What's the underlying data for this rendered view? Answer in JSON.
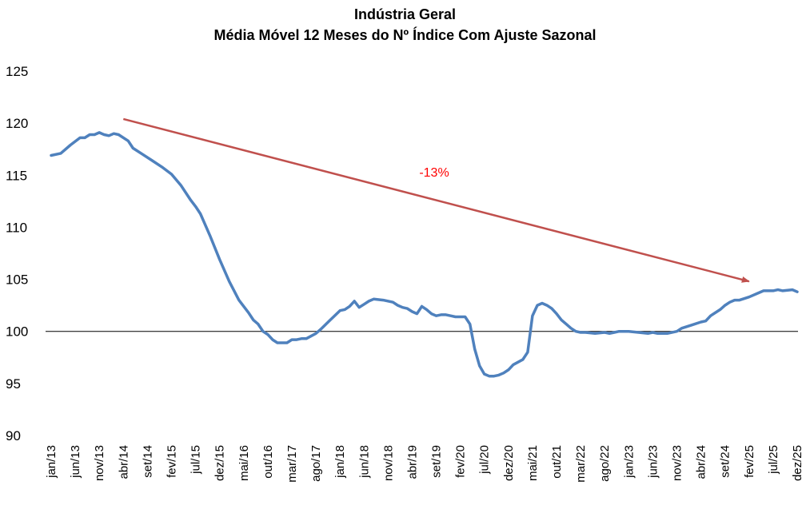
{
  "chart_data": {
    "type": "line",
    "title": "Indústria Geral",
    "subtitle": "Média Móvel 12 Meses do Nº Índice Com Ajuste Sazonal",
    "xlabel": "",
    "ylabel": "",
    "ylim": [
      90,
      125
    ],
    "yticks": [
      90,
      95,
      100,
      105,
      110,
      115,
      120,
      125
    ],
    "reference_line": 100,
    "x_tick_labels": [
      "jan/13",
      "jun/13",
      "nov/13",
      "abr/14",
      "set/14",
      "fev/15",
      "jul/15",
      "dez/15",
      "mai/16",
      "out/16",
      "mar/17",
      "ago/17",
      "jan/18",
      "jun/18",
      "nov/18",
      "abr/19",
      "set/19",
      "fev/20",
      "jul/20",
      "dez/20",
      "mai/21",
      "out/21",
      "mar/22",
      "ago/22",
      "jan/23",
      "jun/23",
      "nov/23",
      "abr/24",
      "set/24",
      "fev/25",
      "jul/25",
      "dez/25"
    ],
    "series_keypoints": [
      {
        "name": "Indústria Geral",
        "color": "#4F81BD",
        "points": [
          {
            "month": "jan/13",
            "value": 116.9
          },
          {
            "month": "mar/13",
            "value": 117.1
          },
          {
            "month": "mai/13",
            "value": 117.9
          },
          {
            "month": "jul/13",
            "value": 118.6
          },
          {
            "month": "ago/13",
            "value": 118.6
          },
          {
            "month": "set/13",
            "value": 118.9
          },
          {
            "month": "out/13",
            "value": 118.9
          },
          {
            "month": "nov/13",
            "value": 119.1
          },
          {
            "month": "dez/13",
            "value": 118.9
          },
          {
            "month": "jan/14",
            "value": 118.8
          },
          {
            "month": "fev/14",
            "value": 119.0
          },
          {
            "month": "mar/14",
            "value": 118.9
          },
          {
            "month": "mai/14",
            "value": 118.3
          },
          {
            "month": "jun/14",
            "value": 117.6
          },
          {
            "month": "ago/14",
            "value": 117.0
          },
          {
            "month": "out/14",
            "value": 116.4
          },
          {
            "month": "dez/14",
            "value": 115.8
          },
          {
            "month": "fev/15",
            "value": 115.1
          },
          {
            "month": "abr/15",
            "value": 114.0
          },
          {
            "month": "jun/15",
            "value": 112.6
          },
          {
            "month": "jul/15",
            "value": 112.0
          },
          {
            "month": "ago/15",
            "value": 111.3
          },
          {
            "month": "out/15",
            "value": 109.2
          },
          {
            "month": "dez/15",
            "value": 106.9
          },
          {
            "month": "fev/16",
            "value": 104.8
          },
          {
            "month": "abr/16",
            "value": 103.0
          },
          {
            "month": "jun/16",
            "value": 101.8
          },
          {
            "month": "jul/16",
            "value": 101.1
          },
          {
            "month": "ago/16",
            "value": 100.7
          },
          {
            "month": "set/16",
            "value": 100.0
          },
          {
            "month": "out/16",
            "value": 99.7
          },
          {
            "month": "nov/16",
            "value": 99.2
          },
          {
            "month": "dez/16",
            "value": 98.9
          },
          {
            "month": "jan/17",
            "value": 98.9
          },
          {
            "month": "fev/17",
            "value": 98.9
          },
          {
            "month": "mar/17",
            "value": 99.2
          },
          {
            "month": "abr/17",
            "value": 99.2
          },
          {
            "month": "mai/17",
            "value": 99.3
          },
          {
            "month": "jun/17",
            "value": 99.3
          },
          {
            "month": "ago/17",
            "value": 99.8
          },
          {
            "month": "set/17",
            "value": 100.2
          },
          {
            "month": "nov/17",
            "value": 101.1
          },
          {
            "month": "jan/18",
            "value": 102.0
          },
          {
            "month": "fev/18",
            "value": 102.1
          },
          {
            "month": "mar/18",
            "value": 102.4
          },
          {
            "month": "abr/18",
            "value": 102.9
          },
          {
            "month": "mai/18",
            "value": 102.3
          },
          {
            "month": "jun/18",
            "value": 102.6
          },
          {
            "month": "jul/18",
            "value": 102.9
          },
          {
            "month": "ago/18",
            "value": 103.1
          },
          {
            "month": "out/18",
            "value": 103.0
          },
          {
            "month": "dez/18",
            "value": 102.8
          },
          {
            "month": "jan/19",
            "value": 102.5
          },
          {
            "month": "fev/19",
            "value": 102.3
          },
          {
            "month": "mar/19",
            "value": 102.2
          },
          {
            "month": "abr/19",
            "value": 101.9
          },
          {
            "month": "mai/19",
            "value": 101.7
          },
          {
            "month": "jun/19",
            "value": 102.4
          },
          {
            "month": "jul/19",
            "value": 102.1
          },
          {
            "month": "ago/19",
            "value": 101.7
          },
          {
            "month": "set/19",
            "value": 101.5
          },
          {
            "month": "out/19",
            "value": 101.6
          },
          {
            "month": "nov/19",
            "value": 101.6
          },
          {
            "month": "dez/19",
            "value": 101.5
          },
          {
            "month": "jan/20",
            "value": 101.4
          },
          {
            "month": "fev/20",
            "value": 101.4
          },
          {
            "month": "mar/20",
            "value": 101.4
          },
          {
            "month": "abr/20",
            "value": 100.7
          },
          {
            "month": "mai/20",
            "value": 98.3
          },
          {
            "month": "jun/20",
            "value": 96.7
          },
          {
            "month": "jul/20",
            "value": 95.9
          },
          {
            "month": "ago/20",
            "value": 95.7
          },
          {
            "month": "set/20",
            "value": 95.7
          },
          {
            "month": "out/20",
            "value": 95.8
          },
          {
            "month": "nov/20",
            "value": 96.0
          },
          {
            "month": "dez/20",
            "value": 96.3
          },
          {
            "month": "jan/21",
            "value": 96.8
          },
          {
            "month": "mar/21",
            "value": 97.3
          },
          {
            "month": "abr/21",
            "value": 98.0
          },
          {
            "month": "mai/21",
            "value": 101.5
          },
          {
            "month": "jun/21",
            "value": 102.5
          },
          {
            "month": "jul/21",
            "value": 102.7
          },
          {
            "month": "ago/21",
            "value": 102.5
          },
          {
            "month": "set/21",
            "value": 102.2
          },
          {
            "month": "out/21",
            "value": 101.7
          },
          {
            "month": "nov/21",
            "value": 101.1
          },
          {
            "month": "dez/21",
            "value": 100.7
          },
          {
            "month": "jan/22",
            "value": 100.3
          },
          {
            "month": "fev/22",
            "value": 100.0
          },
          {
            "month": "mar/22",
            "value": 99.9
          },
          {
            "month": "abr/22",
            "value": 99.9
          },
          {
            "month": "jun/22",
            "value": 99.8
          },
          {
            "month": "ago/22",
            "value": 99.9
          },
          {
            "month": "set/22",
            "value": 99.8
          },
          {
            "month": "out/22",
            "value": 99.9
          },
          {
            "month": "nov/22",
            "value": 100.0
          },
          {
            "month": "jan/23",
            "value": 100.0
          },
          {
            "month": "mar/23",
            "value": 99.9
          },
          {
            "month": "mai/23",
            "value": 99.8
          },
          {
            "month": "jun/23",
            "value": 99.9
          },
          {
            "month": "jul/23",
            "value": 99.8
          },
          {
            "month": "set/23",
            "value": 99.8
          },
          {
            "month": "nov/23",
            "value": 100.0
          },
          {
            "month": "dez/23",
            "value": 100.3
          },
          {
            "month": "fev/24",
            "value": 100.6
          },
          {
            "month": "abr/24",
            "value": 100.9
          },
          {
            "month": "mai/24",
            "value": 101.0
          },
          {
            "month": "jun/24",
            "value": 101.5
          },
          {
            "month": "ago/24",
            "value": 102.1
          },
          {
            "month": "set/24",
            "value": 102.5
          },
          {
            "month": "out/24",
            "value": 102.8
          },
          {
            "month": "nov/24",
            "value": 103.0
          },
          {
            "month": "dez/24",
            "value": 103.0
          },
          {
            "month": "fev/25",
            "value": 103.3
          },
          {
            "month": "abr/25",
            "value": 103.7
          },
          {
            "month": "mai/25",
            "value": 103.9
          },
          {
            "month": "jun/25",
            "value": 103.9
          },
          {
            "month": "jul/25",
            "value": 103.9
          },
          {
            "month": "ago/25",
            "value": 104.0
          },
          {
            "month": "set/25",
            "value": 103.9
          },
          {
            "month": "nov/25",
            "value": 104.0
          },
          {
            "month": "dez/25",
            "value": 103.8
          }
        ]
      }
    ],
    "trend_arrow": {
      "color": "#C0504D",
      "start": {
        "month": "abr/14",
        "value": 120.4
      },
      "end": {
        "month": "fev/25",
        "value": 104.8
      },
      "label": "-13%",
      "label_color": "#FF0000"
    }
  }
}
